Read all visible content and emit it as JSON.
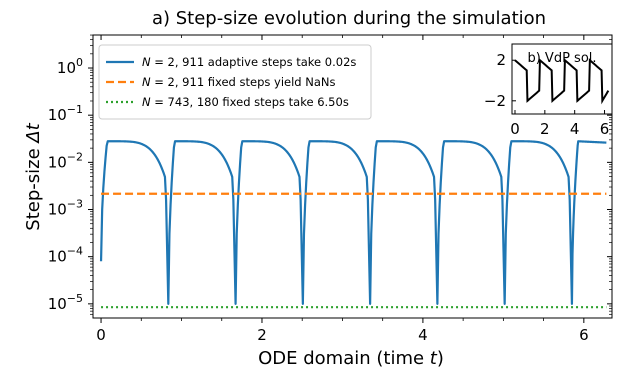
{
  "chart_data": {
    "type": "line",
    "title": "a) Step-size evolution during the simulation",
    "xlabel": "ODE domain (time t)",
    "ylabel": "Step-size Δt",
    "xlim": [
      -0.1,
      6.35
    ],
    "ylim_log10": [
      -5.3,
      0.7
    ],
    "yscale": "log",
    "x_ticks": [
      0,
      2,
      4,
      6
    ],
    "x_tick_labels": [
      "0",
      "2",
      "4",
      "6"
    ],
    "y_ticks_log10": [
      -5,
      -4,
      -3,
      -2,
      -1,
      0
    ],
    "y_tick_labels": [
      "10^-5",
      "10^-4",
      "10^-3",
      "10^-2",
      "10^-1",
      "10^0"
    ],
    "legend_position": "upper-left",
    "series": [
      {
        "name": "N = 2, 911 adaptive steps take 0.02s",
        "color": "#1f77b4",
        "style": "solid",
        "period": 0.836,
        "spike_times": [
          0.836,
          1.672,
          2.508,
          3.344,
          4.18,
          5.016,
          5.852
        ],
        "peak_value": 0.028,
        "min_value": 1e-05,
        "start_value": 8e-05,
        "end_x": 6.28,
        "end_value": 0.025
      },
      {
        "name": "N = 2, 911 fixed steps yield NaNs",
        "color": "#ff7f0e",
        "style": "dashed",
        "x": [
          0,
          6.28
        ],
        "y": [
          0.00216,
          0.00216
        ]
      },
      {
        "name": "N = 743, 180 fixed steps take 6.50s",
        "color": "#2ca02c",
        "style": "dotted",
        "x": [
          0,
          6.28
        ],
        "y": [
          8.5e-06,
          8.5e-06
        ]
      }
    ],
    "inset": {
      "title": "b) VdP sol.",
      "type": "line",
      "xlim": [
        -0.2,
        6.5
      ],
      "ylim": [
        -3.3,
        3.6
      ],
      "x_ticks": [
        0,
        2,
        4,
        6
      ],
      "x_tick_labels": [
        "0",
        "2",
        "4",
        "6"
      ],
      "y_ticks": [
        2,
        -2
      ],
      "y_tick_labels": [
        "2",
        "−2"
      ],
      "color": "#000000",
      "period": 0.836,
      "high_value": 2.0,
      "low_value": -2.0
    }
  }
}
